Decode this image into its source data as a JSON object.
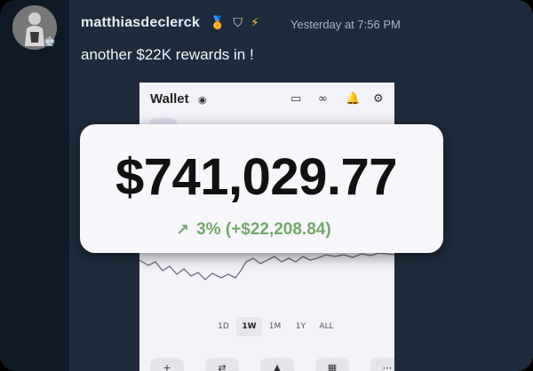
{
  "message": {
    "username": "matthiasdeclerck",
    "timestamp": "Yesterday at 7:56 PM",
    "text": "another $22K rewards in !",
    "badges": [
      "medal-icon",
      "shield-icon",
      "bolt-icon"
    ]
  },
  "attachment": {
    "wallet": {
      "title": "Wallet",
      "balance": "$741,029.77",
      "change": "3% (+$22,208.84)",
      "ranges": [
        "1D",
        "1W",
        "1M",
        "1Y",
        "ALL"
      ],
      "active_range": "1W"
    }
  },
  "colors": {
    "background": "#1e2b3c",
    "sidebar": "#101a26",
    "gain": "#73a86a"
  }
}
